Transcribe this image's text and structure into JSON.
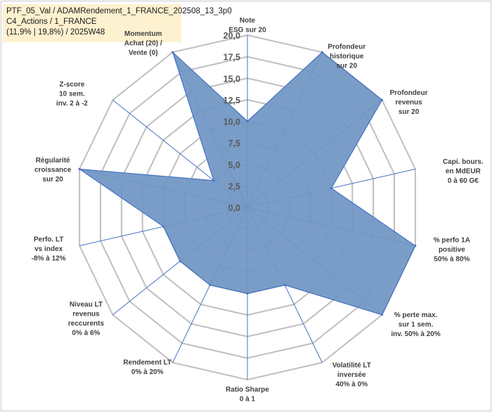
{
  "title_lines": [
    "PTF_05_Val / ADAMRendement_1_FRANCE_202508_13_3p0",
    "C4_Actions / 1_FRANCE",
    "(11,9% | 19,8%) / 2025W48"
  ],
  "chart_data": {
    "type": "radar",
    "title": "PTF_05_Val / ADAMRendement_1_FRANCE_202508_13_3p0 C4_Actions / 1_FRANCE (11,9% | 19,8%) / 2025W48",
    "rmin": 0,
    "rmax": 20,
    "ticks": [
      "0,0",
      "2,5",
      "5,0",
      "7,5",
      "10,0",
      "12,5",
      "15,0",
      "17,5",
      "20,0"
    ],
    "tick_values": [
      0,
      2.5,
      5,
      7.5,
      10,
      12.5,
      15,
      17.5,
      20
    ],
    "grid": true,
    "fill_color": "#7096c4",
    "line_color": "#4472c4",
    "axes": [
      {
        "label_lines": [
          "Note",
          "ESG sur 20"
        ],
        "value": 10
      },
      {
        "label_lines": [
          "Profondeur",
          "historique",
          "sur 20"
        ],
        "value": 20
      },
      {
        "label_lines": [
          "Profondeur",
          "revenus",
          "sur 20"
        ],
        "value": 20
      },
      {
        "label_lines": [
          "Capi. bours.",
          "en MdEUR",
          "0 à 60 G€"
        ],
        "value": 10
      },
      {
        "label_lines": [
          "% perfo 1A",
          "positive",
          "50% à 80%"
        ],
        "value": 20
      },
      {
        "label_lines": [
          "% perte max.",
          "sur 1 sem.",
          "inv. 50% à 20%"
        ],
        "value": 20
      },
      {
        "label_lines": [
          "Volatilité LT",
          "inversée",
          "40% à 0%"
        ],
        "value": 10
      },
      {
        "label_lines": [
          "Ratio Sharpe",
          "0 à 1"
        ],
        "value": 10
      },
      {
        "label_lines": [
          "Rendement LT",
          "0% à 20%"
        ],
        "value": 10
      },
      {
        "label_lines": [
          "Niveau LT",
          "revenus",
          "reccurents",
          "0% à 6%"
        ],
        "value": 10
      },
      {
        "label_lines": [
          "Perfo. LT",
          "vs index",
          "-8% à 12%"
        ],
        "value": 10
      },
      {
        "label_lines": [
          "Régularité",
          "croissance",
          "sur 20"
        ],
        "value": 20
      },
      {
        "label_lines": [
          "Z-score",
          "10 sem.",
          "inv. 2 à -2"
        ],
        "value": 5
      },
      {
        "label_lines": [
          "Momentum",
          "Achat (20) /",
          "Vente (0)"
        ],
        "value": 20
      }
    ]
  }
}
